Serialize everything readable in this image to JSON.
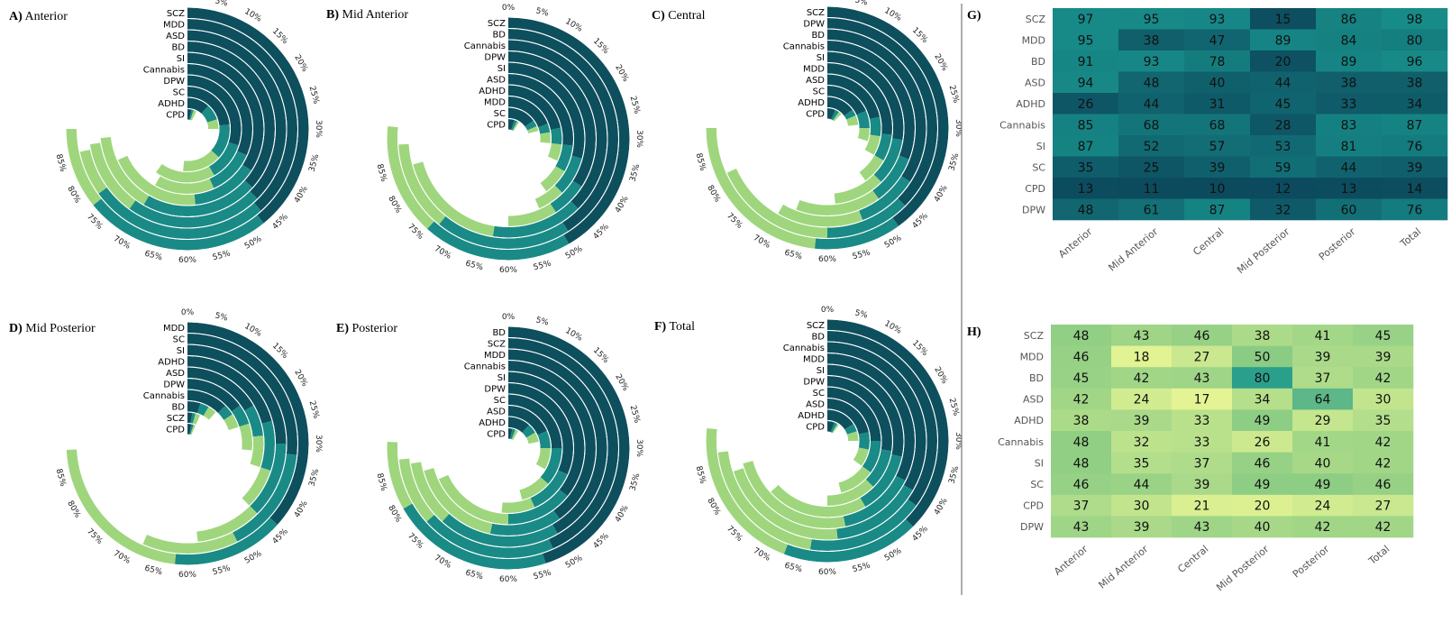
{
  "chart_data": [
    {
      "type": "radial-bar",
      "panel": "A)",
      "title": "Anterior",
      "tick_labels": [
        "0%",
        "5%",
        "10%",
        "15%",
        "20%",
        "25%",
        "30%",
        "35%",
        "40%",
        "45%",
        "50%",
        "55%",
        "60%",
        "65%",
        "70%",
        "75%",
        "80%",
        "85%"
      ],
      "categories": [
        "SCZ",
        "MDD",
        "ASD",
        "BD",
        "SI",
        "Cannabis",
        "DPW",
        "SC",
        "ADHD",
        "CPD"
      ],
      "segments": [
        [
          [
            0,
            47
          ],
          [
            47,
            77
          ],
          [
            77,
            90
          ]
        ],
        [
          [
            0,
            46
          ],
          [
            46,
            78
          ],
          [
            78,
            86
          ]
        ],
        [
          [
            0,
            45
          ],
          [
            45,
            72
          ],
          [
            72,
            87
          ]
        ],
        [
          [
            0,
            44
          ],
          [
            44,
            70
          ],
          [
            70,
            88
          ]
        ],
        [
          [
            0,
            41
          ],
          [
            41,
            58
          ],
          [
            58,
            82
          ]
        ],
        [
          [
            0,
            38
          ],
          [
            38,
            52
          ],
          [
            52,
            70
          ]
        ],
        [
          [
            0,
            36
          ],
          [
            36,
            50
          ],
          [
            50,
            72
          ]
        ],
        [
          [
            0,
            28
          ],
          [
            28,
            44
          ],
          [
            44,
            62
          ]
        ],
        [
          [
            0,
            14
          ],
          [
            14,
            24
          ],
          [
            24,
            30
          ]
        ],
        [
          [
            0,
            4
          ],
          [
            4,
            6
          ],
          [
            6,
            9
          ]
        ]
      ]
    },
    {
      "type": "radial-bar",
      "panel": "B)",
      "title": "Mid Anterior",
      "tick_labels": [
        "0%",
        "5%",
        "10%",
        "15%",
        "20%",
        "25%",
        "30%",
        "35%",
        "40%",
        "45%",
        "50%",
        "55%",
        "60%",
        "65%",
        "70%",
        "75%",
        "80%",
        "85%"
      ],
      "categories": [
        "SCZ",
        "BD",
        "Cannabis",
        "DPW",
        "SI",
        "ASD",
        "ADHD",
        "MDD",
        "SC",
        "CPD"
      ],
      "segments": [
        [
          [
            0,
            50
          ],
          [
            50,
            74
          ],
          [
            74,
            92
          ]
        ],
        [
          [
            0,
            49
          ],
          [
            49,
            73
          ],
          [
            73,
            89
          ]
        ],
        [
          [
            0,
            45
          ],
          [
            45,
            63
          ],
          [
            63,
            85
          ]
        ],
        [
          [
            0,
            41
          ],
          [
            41,
            49
          ],
          [
            49,
            60
          ]
        ],
        [
          [
            0,
            35
          ],
          [
            35,
            45
          ],
          [
            45,
            52
          ]
        ],
        [
          [
            0,
            32
          ],
          [
            32,
            40
          ],
          [
            40,
            48
          ]
        ],
        [
          [
            0,
            26
          ],
          [
            26,
            32
          ],
          [
            32,
            38
          ]
        ],
        [
          [
            0,
            23
          ],
          [
            23,
            27
          ],
          [
            27,
            32
          ]
        ],
        [
          [
            0,
            18
          ],
          [
            18,
            22
          ],
          [
            22,
            25
          ]
        ],
        [
          [
            0,
            6
          ],
          [
            6,
            9
          ],
          [
            9,
            11
          ]
        ]
      ]
    },
    {
      "type": "radial-bar",
      "panel": "C)",
      "title": "Central",
      "tick_labels": [
        "0%",
        "5%",
        "10%",
        "15%",
        "20%",
        "25%",
        "30%",
        "35%",
        "40%",
        "45%",
        "50%",
        "55%",
        "60%",
        "65%",
        "70%",
        "75%",
        "80%",
        "85%"
      ],
      "categories": [
        "SCZ",
        "DPW",
        "BD",
        "Cannabis",
        "SI",
        "MDD",
        "ASD",
        "SC",
        "ADHD",
        "CPD"
      ],
      "segments": [
        [
          [
            0,
            48
          ],
          [
            48,
            62
          ],
          [
            62,
            90
          ]
        ],
        [
          [
            0,
            45
          ],
          [
            45,
            60
          ],
          [
            60,
            82
          ]
        ],
        [
          [
            0,
            41
          ],
          [
            41,
            53
          ],
          [
            53,
            70
          ]
        ],
        [
          [
            0,
            37
          ],
          [
            37,
            48
          ],
          [
            48,
            67
          ]
        ],
        [
          [
            0,
            33
          ],
          [
            33,
            45
          ],
          [
            45,
            58
          ]
        ],
        [
          [
            0,
            32
          ],
          [
            32,
            40
          ],
          [
            40,
            48
          ]
        ],
        [
          [
            0,
            26
          ],
          [
            26,
            33
          ],
          [
            33,
            40
          ]
        ],
        [
          [
            0,
            22
          ],
          [
            22,
            30
          ],
          [
            30,
            36
          ]
        ],
        [
          [
            0,
            18
          ],
          [
            18,
            22
          ],
          [
            22,
            28
          ]
        ],
        [
          [
            0,
            8
          ],
          [
            8,
            12
          ],
          [
            12,
            15
          ]
        ]
      ]
    },
    {
      "type": "radial-bar",
      "panel": "D)",
      "title": "Mid Posterior",
      "tick_labels": [
        "0%",
        "5%",
        "10%",
        "15%",
        "20%",
        "25%",
        "30%",
        "35%",
        "40%",
        "45%",
        "50%",
        "55%",
        "60%",
        "65%",
        "70%",
        "75%",
        "80%",
        "85%"
      ],
      "categories": [
        "MDD",
        "SC",
        "SI",
        "ADHD",
        "ASD",
        "DPW",
        "Cannabis",
        "BD",
        "SCZ",
        "CPD"
      ],
      "segments": [
        [
          [
            0,
            44
          ],
          [
            44,
            62
          ],
          [
            62,
            89
          ]
        ],
        [
          [
            0,
            32
          ],
          [
            32,
            51
          ],
          [
            51,
            68
          ]
        ],
        [
          [
            0,
            30
          ],
          [
            30,
            45
          ],
          [
            45,
            58
          ]
        ],
        [
          [
            0,
            25
          ],
          [
            25,
            36
          ],
          [
            36,
            45
          ]
        ],
        [
          [
            0,
            20
          ],
          [
            20,
            28
          ],
          [
            28,
            36
          ]
        ],
        [
          [
            0,
            18
          ],
          [
            18,
            24
          ],
          [
            24,
            32
          ]
        ],
        [
          [
            0,
            15
          ],
          [
            15,
            19
          ],
          [
            19,
            24
          ]
        ],
        [
          [
            0,
            6
          ],
          [
            6,
            10
          ],
          [
            10,
            14
          ]
        ],
        [
          [
            0,
            3
          ],
          [
            3,
            5
          ],
          [
            5,
            8
          ]
        ],
        [
          [
            0,
            4
          ],
          [
            4,
            6
          ],
          [
            6,
            8
          ]
        ]
      ]
    },
    {
      "type": "radial-bar",
      "panel": "E)",
      "title": "Posterior",
      "tick_labels": [
        "0%",
        "5%",
        "10%",
        "15%",
        "20%",
        "25%",
        "30%",
        "35%",
        "40%",
        "45%",
        "50%",
        "55%",
        "60%",
        "65%",
        "70%",
        "75%",
        "80%",
        "85%"
      ],
      "categories": [
        "BD",
        "SCZ",
        "MDD",
        "Cannabis",
        "SI",
        "DPW",
        "SC",
        "ASD",
        "ADHD",
        "CPD"
      ],
      "segments": [
        [
          [
            0,
            54
          ],
          [
            54,
            80
          ],
          [
            80,
            91
          ]
        ],
        [
          [
            0,
            52
          ],
          [
            52,
            76
          ],
          [
            76,
            88
          ]
        ],
        [
          [
            0,
            50
          ],
          [
            50,
            74
          ],
          [
            74,
            87
          ]
        ],
        [
          [
            0,
            48
          ],
          [
            48,
            64
          ],
          [
            64,
            85
          ]
        ],
        [
          [
            0,
            43
          ],
          [
            43,
            60
          ],
          [
            60,
            82
          ]
        ],
        [
          [
            0,
            38
          ],
          [
            38,
            52
          ],
          [
            52,
            62
          ]
        ],
        [
          [
            0,
            30
          ],
          [
            30,
            44
          ],
          [
            44,
            55
          ]
        ],
        [
          [
            0,
            22
          ],
          [
            22,
            30
          ],
          [
            30,
            40
          ]
        ],
        [
          [
            0,
            14
          ],
          [
            14,
            20
          ],
          [
            20,
            26
          ]
        ],
        [
          [
            0,
            4
          ],
          [
            4,
            7
          ],
          [
            7,
            10
          ]
        ]
      ]
    },
    {
      "type": "radial-bar",
      "panel": "F)",
      "title": "Total",
      "tick_labels": [
        "0%",
        "5%",
        "10%",
        "15%",
        "20%",
        "25%",
        "30%",
        "35%",
        "40%",
        "45%",
        "50%",
        "55%",
        "60%",
        "65%",
        "70%",
        "75%",
        "80%",
        "85%"
      ],
      "categories": [
        "SCZ",
        "BD",
        "Cannabis",
        "MDD",
        "SI",
        "DPW",
        "SC",
        "ASD",
        "ADHD",
        "CPD"
      ],
      "segments": [
        [
          [
            0,
            45
          ],
          [
            45,
            67
          ],
          [
            67,
            92
          ]
        ],
        [
          [
            0,
            42
          ],
          [
            42,
            63
          ],
          [
            63,
            88
          ]
        ],
        [
          [
            0,
            40
          ],
          [
            40,
            58
          ],
          [
            58,
            84
          ]
        ],
        [
          [
            0,
            39
          ],
          [
            39,
            56
          ],
          [
            56,
            85
          ]
        ],
        [
          [
            0,
            34
          ],
          [
            34,
            50
          ],
          [
            50,
            76
          ]
        ],
        [
          [
            0,
            33
          ],
          [
            33,
            45
          ],
          [
            45,
            60
          ]
        ],
        [
          [
            0,
            30
          ],
          [
            30,
            42
          ],
          [
            42,
            55
          ]
        ],
        [
          [
            0,
            26
          ],
          [
            26,
            34
          ],
          [
            34,
            42
          ]
        ],
        [
          [
            0,
            19
          ],
          [
            19,
            24
          ],
          [
            24,
            30
          ]
        ],
        [
          [
            0,
            7
          ],
          [
            7,
            10
          ],
          [
            10,
            12
          ]
        ]
      ]
    },
    {
      "type": "heatmap",
      "panel": "G)",
      "rows": [
        "SCZ",
        "MDD",
        "BD",
        "ASD",
        "ADHD",
        "Cannabis",
        "SI",
        "SC",
        "CPD",
        "DPW"
      ],
      "columns": [
        "Anterior",
        "Mid Anterior",
        "Central",
        "Mid Posterior",
        "Posterior",
        "Total"
      ],
      "values": [
        [
          97,
          95,
          93,
          15,
          86,
          98
        ],
        [
          95,
          38,
          47,
          89,
          84,
          80
        ],
        [
          91,
          93,
          78,
          20,
          89,
          96
        ],
        [
          94,
          48,
          40,
          44,
          38,
          38
        ],
        [
          26,
          44,
          31,
          45,
          33,
          34
        ],
        [
          85,
          68,
          68,
          28,
          83,
          87
        ],
        [
          87,
          52,
          57,
          53,
          81,
          76
        ],
        [
          35,
          25,
          39,
          59,
          44,
          39
        ],
        [
          13,
          11,
          10,
          12,
          13,
          14
        ],
        [
          48,
          61,
          87,
          32,
          60,
          76
        ]
      ]
    },
    {
      "type": "heatmap",
      "panel": "H)",
      "rows": [
        "SCZ",
        "MDD",
        "BD",
        "ASD",
        "ADHD",
        "Cannabis",
        "SI",
        "SC",
        "CPD",
        "DPW"
      ],
      "columns": [
        "Anterior",
        "Mid Anterior",
        "Central",
        "Mid Posterior",
        "Posterior",
        "Total"
      ],
      "values": [
        [
          48,
          43,
          46,
          38,
          41,
          45
        ],
        [
          46,
          18,
          27,
          50,
          39,
          39
        ],
        [
          45,
          42,
          43,
          80,
          37,
          42
        ],
        [
          42,
          24,
          17,
          34,
          64,
          30
        ],
        [
          38,
          39,
          33,
          49,
          29,
          35
        ],
        [
          48,
          32,
          33,
          26,
          41,
          42
        ],
        [
          48,
          35,
          37,
          46,
          40,
          42
        ],
        [
          46,
          44,
          39,
          49,
          49,
          46
        ],
        [
          37,
          30,
          21,
          20,
          24,
          27
        ],
        [
          43,
          39,
          43,
          40,
          42,
          42
        ]
      ]
    }
  ],
  "colors": {
    "segments": [
      "#0e4f5e",
      "#1a8a86",
      "#9fd67d",
      "#d2ec9a"
    ],
    "heatmap_g": [
      "#0c4a5e",
      "#178b88"
    ],
    "heatmap_h": [
      "#e4f494",
      "#8fce84",
      "#2a9f8c"
    ],
    "label_gray": "#555555",
    "divider": "#777777"
  }
}
